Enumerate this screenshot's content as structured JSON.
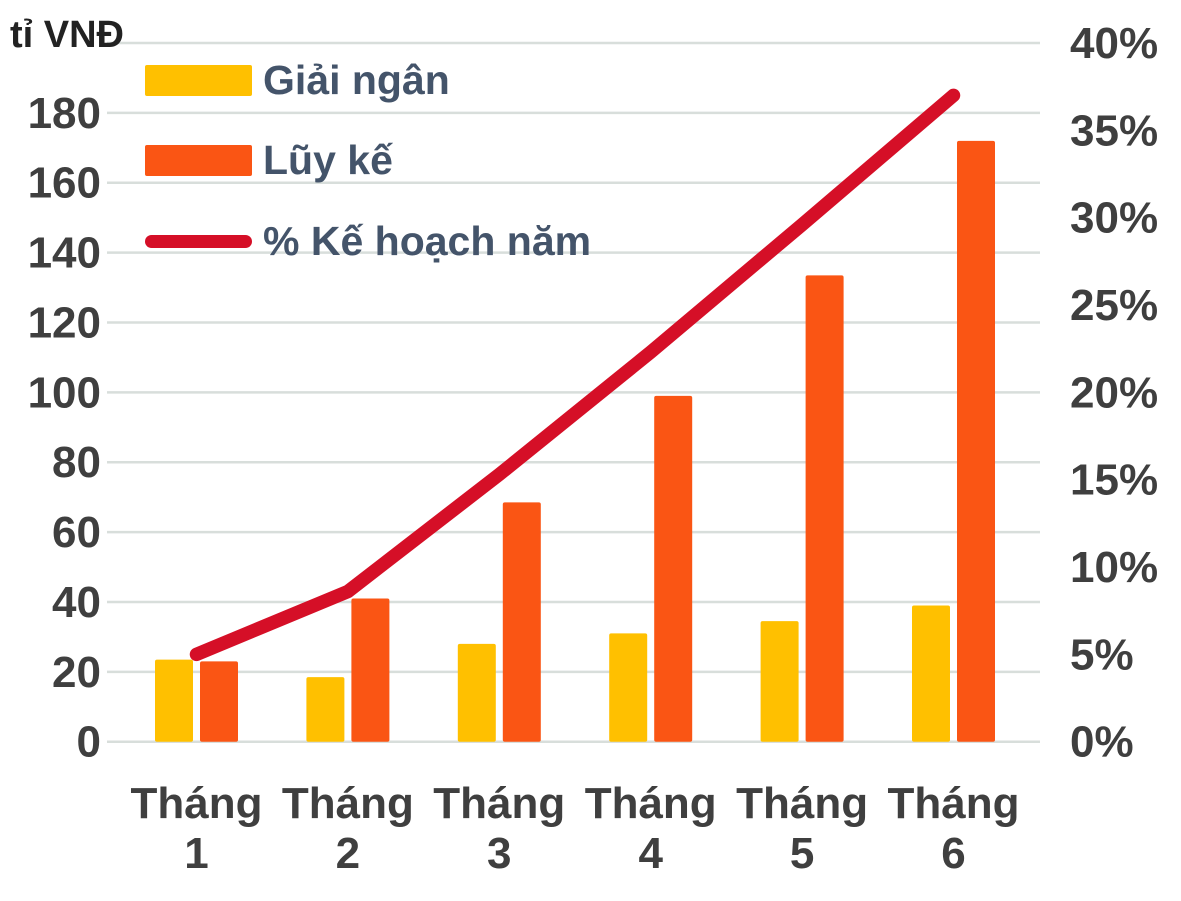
{
  "page": {
    "left_axis_title": "tỉ VNĐ"
  },
  "legend": {
    "position": "top-left",
    "items": [
      {
        "label": "Giải ngân",
        "color": "#FFC000",
        "marker": "bar-swatch"
      },
      {
        "label": "Lũy kế",
        "color": "#FA5514",
        "marker": "bar-swatch"
      },
      {
        "label": "% Kế hoạch năm",
        "color": "#D50F27",
        "marker": "line-swatch"
      }
    ]
  },
  "chart_data": {
    "type": "combo-bar-line",
    "title": "",
    "categories": [
      "Tháng 1",
      "Tháng 2",
      "Tháng 3",
      "Tháng 4",
      "Tháng 5",
      "Tháng 6"
    ],
    "series": [
      {
        "name": "Giải ngân",
        "type": "bar",
        "axis": "left",
        "color": "#FFC000",
        "values": [
          23.5,
          18.5,
          28,
          31,
          34.5,
          39
        ]
      },
      {
        "name": "Lũy kế",
        "type": "bar",
        "axis": "left",
        "color": "#FA5514",
        "values": [
          23,
          41,
          68.5,
          99,
          133.5,
          172
        ]
      },
      {
        "name": "% Kế hoạch năm",
        "type": "line",
        "axis": "right",
        "color": "#D50F27",
        "values": [
          5,
          8.6,
          15.3,
          22.3,
          29.6,
          37
        ]
      }
    ],
    "left_axis": {
      "title": "tỉ VNĐ",
      "min": 0,
      "max": 200,
      "tick_step": 20,
      "tick_labels": [
        "0",
        "20",
        "40",
        "60",
        "80",
        "100",
        "120",
        "140",
        "160",
        "180"
      ]
    },
    "right_axis": {
      "min": 0,
      "max": 40,
      "tick_step": 5,
      "tick_labels": [
        "0%",
        "5%",
        "10%",
        "15%",
        "20%",
        "25%",
        "30%",
        "35%",
        "40%"
      ]
    },
    "grid": true,
    "legend_position": "top-left"
  },
  "colors": {
    "background": "#FFFFFF",
    "gridline": "#D8DEDB",
    "tick_text": "#3F3F3F",
    "category_text": "#3F3F3F",
    "legend_text": "#44546A",
    "bar_giai_ngan": "#FFC000",
    "bar_luy_ke": "#FA5514",
    "line_ke_hoach": "#D50F27"
  }
}
